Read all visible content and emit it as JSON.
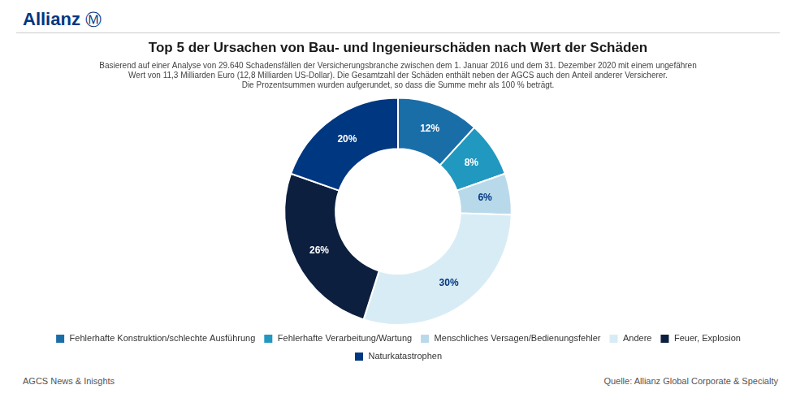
{
  "chart_data": {
    "type": "doughnut",
    "title": "Top 5 der Ursachen von Bau- und Ingenieurschäden nach Wert der Schäden",
    "subtitle": [
      "Basierend auf einer Analyse von 29.640 Schadensfällen der Versicherungsbranche zwischen dem 1. Januar 2016 und dem 31. Dezember 2020 mit einem ungefähren",
      "Wert von 11,3 Milliarden Euro (12,8 Milliarden US-Dollar). Die Gesamtzahl der Schäden enthält neben der AGCS auch den Anteil anderer Versicherer.",
      "Die Prozentsummen wurden aufgerundet, so dass die Summe mehr als 100 % beträgt."
    ],
    "annotations": [
      "Allianz",
      "Ⓜ",
      "AGCS News & Inisghts",
      "Quelle: Allianz Global Corporate & Specialty"
    ],
    "categories": [
      "Fehlerhafte Konstruktion/schlechte Ausführung",
      "Fehlerhafte Verarbeitung/Wartung",
      "Menschliches Versagen/Bedienungsfehler",
      "Andere",
      "Feuer, Explosion",
      "Naturkatastrophen"
    ],
    "values": [
      12,
      8,
      6,
      30,
      26,
      20
    ],
    "value_labels": [
      "12%",
      "8%",
      "6%",
      "30%",
      "26%",
      "20%"
    ],
    "colors": [
      "#1a6ea8",
      "#2198c0",
      "#b8d9ea",
      "#d8ecf5",
      "#0c1f3f",
      "#003781"
    ],
    "data_labels": true,
    "legend": "bottom"
  }
}
